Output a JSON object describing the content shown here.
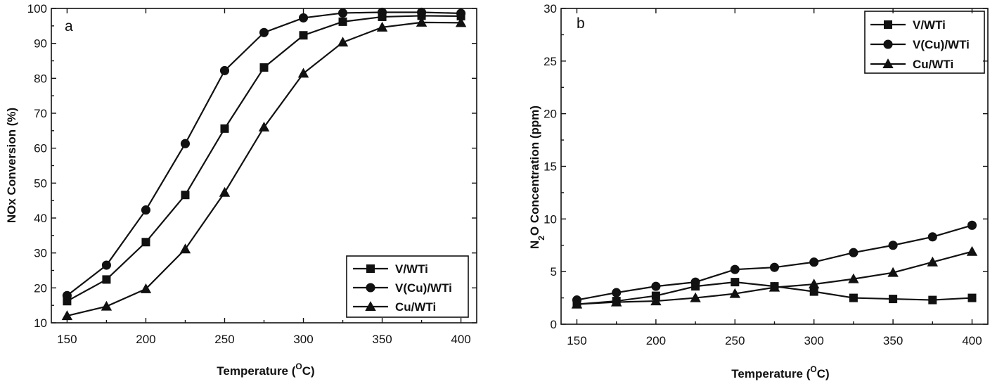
{
  "chart_data": [
    {
      "type": "line",
      "panel_label": "a",
      "xlabel": "Temperature (",
      "xlabel_sup": "O",
      "xlabel_end": "C)",
      "ylabel": "NOx Conversion (%)",
      "xlim": [
        140,
        410
      ],
      "ylim": [
        10,
        100
      ],
      "x_ticks": [
        "150",
        "200",
        "250",
        "300",
        "350",
        "400"
      ],
      "y_ticks": [
        "10",
        "20",
        "30",
        "40",
        "50",
        "60",
        "70",
        "80",
        "90",
        "100"
      ],
      "legend_position": "bottom-right",
      "x": [
        150,
        175,
        200,
        225,
        250,
        275,
        300,
        325,
        350,
        375,
        400
      ],
      "series": [
        {
          "name": "V/WTi",
          "marker": "square",
          "values": [
            16.2,
            22.4,
            33.1,
            46.6,
            65.6,
            83.1,
            92.3,
            96.2,
            97.6,
            97.9,
            97.8
          ]
        },
        {
          "name": "V(Cu)/WTi",
          "marker": "circle",
          "values": [
            17.8,
            26.5,
            42.3,
            61.3,
            82.2,
            93.1,
            97.3,
            98.7,
            98.9,
            98.9,
            98.6
          ]
        },
        {
          "name": "Cu/WTi",
          "marker": "triangle",
          "values": [
            12.0,
            14.7,
            19.7,
            31.1,
            47.3,
            66.0,
            81.4,
            90.3,
            94.6,
            96.0,
            95.9
          ]
        }
      ]
    },
    {
      "type": "line",
      "panel_label": "b",
      "xlabel": "Temperature (",
      "xlabel_sup": "O",
      "xlabel_end": "C)",
      "ylabel": "N",
      "ylabel_sub": "2",
      "ylabel_end": "O Concentration (ppm)",
      "xlim": [
        140,
        410
      ],
      "ylim": [
        0,
        30
      ],
      "x_ticks": [
        "150",
        "200",
        "250",
        "300",
        "350",
        "400"
      ],
      "y_ticks": [
        "0",
        "5",
        "10",
        "15",
        "20",
        "25",
        "30"
      ],
      "legend_position": "top-right",
      "x": [
        150,
        175,
        200,
        225,
        250,
        275,
        300,
        325,
        350,
        375,
        400
      ],
      "series": [
        {
          "name": "V/WTi",
          "marker": "square",
          "values": [
            1.9,
            2.2,
            2.7,
            3.6,
            4.0,
            3.6,
            3.1,
            2.5,
            2.4,
            2.3,
            2.5
          ]
        },
        {
          "name": "V(Cu)/WTi",
          "marker": "circle",
          "values": [
            2.3,
            3.0,
            3.6,
            4.0,
            5.2,
            5.4,
            5.9,
            6.8,
            7.5,
            8.3,
            9.4
          ]
        },
        {
          "name": "Cu/WTi",
          "marker": "triangle",
          "values": [
            1.9,
            2.1,
            2.2,
            2.5,
            2.9,
            3.5,
            3.8,
            4.3,
            4.9,
            5.9,
            6.9
          ]
        }
      ]
    }
  ]
}
